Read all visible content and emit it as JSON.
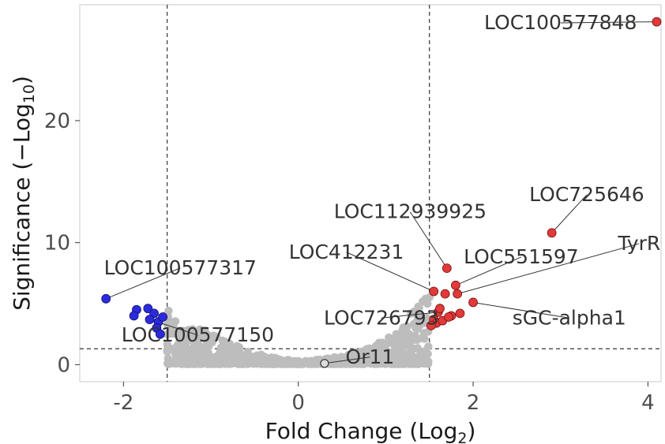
{
  "chart_data": {
    "type": "scatter",
    "title": "",
    "xlabel": {
      "prefix": "Fold Change (Log",
      "sub": "2",
      "suffix": ")"
    },
    "ylabel": {
      "prefix": "Significance (−Log",
      "sub": "10",
      "suffix": ")"
    },
    "xlim": [
      -2.5,
      4.15
    ],
    "ylim": [
      -1.4,
      29.5
    ],
    "x_ticks": [
      -2,
      0,
      2,
      4
    ],
    "y_ticks": [
      0,
      10,
      20
    ],
    "grid": false,
    "thresholds": {
      "fold_change": [
        -1.5,
        1.5
      ],
      "significance": 1.3
    },
    "colors": {
      "down": "#2b2bdd",
      "up": "#e03a3a",
      "ns": "#bdbdbd",
      "highlight_outline": "#333333"
    },
    "points": {
      "up": [
        [
          4.1,
          28.1
        ],
        [
          2.9,
          10.8
        ],
        [
          1.7,
          7.9
        ],
        [
          1.8,
          6.5
        ],
        [
          1.82,
          5.8
        ],
        [
          2.0,
          5.1
        ],
        [
          1.55,
          6.0
        ],
        [
          1.68,
          5.8
        ],
        [
          1.6,
          4.3
        ],
        [
          1.62,
          4.6
        ],
        [
          1.75,
          4.0
        ],
        [
          1.85,
          4.2
        ],
        [
          1.55,
          3.7
        ],
        [
          1.58,
          3.4
        ],
        [
          1.52,
          3.2
        ],
        [
          1.65,
          3.6
        ],
        [
          1.72,
          3.9
        ]
      ],
      "down": [
        [
          -2.2,
          5.4
        ],
        [
          -1.85,
          4.5
        ],
        [
          -1.72,
          4.6
        ],
        [
          -1.88,
          4.0
        ],
        [
          -1.65,
          4.2
        ],
        [
          -1.6,
          3.5
        ],
        [
          -1.7,
          3.7
        ],
        [
          -1.55,
          3.9
        ],
        [
          -1.62,
          3.0
        ],
        [
          -1.58,
          2.5
        ]
      ],
      "ns_envelope": [
        [
          -1.5,
          4.9
        ],
        [
          -1.4,
          4.0
        ],
        [
          -1.3,
          3.4
        ],
        [
          -1.1,
          3.2
        ],
        [
          -1.0,
          2.7
        ],
        [
          -0.8,
          1.9
        ],
        [
          -0.6,
          1.3
        ],
        [
          -0.4,
          0.8
        ],
        [
          -0.2,
          0.45
        ],
        [
          0.0,
          0.3
        ],
        [
          0.2,
          0.4
        ],
        [
          0.4,
          0.6
        ],
        [
          0.6,
          0.9
        ],
        [
          0.8,
          1.4
        ],
        [
          1.0,
          2.1
        ],
        [
          1.1,
          2.6
        ],
        [
          1.2,
          3.3
        ],
        [
          1.3,
          4.3
        ],
        [
          1.4,
          5.3
        ],
        [
          1.5,
          5.6
        ]
      ],
      "highlighted_ns": [
        [
          0.3,
          0.1
        ]
      ]
    },
    "labels": [
      {
        "text": "LOC100577848",
        "point": [
          4.1,
          28.1
        ],
        "pos": [
          3.0,
          27.5
        ],
        "leader": true
      },
      {
        "text": "LOC725646",
        "point": [
          2.9,
          10.8
        ],
        "pos": [
          3.3,
          13.4
        ],
        "leader": true
      },
      {
        "text": "LOC112939925",
        "point": [
          1.7,
          7.9
        ],
        "pos": [
          1.28,
          12.0
        ],
        "leader": true
      },
      {
        "text": "LOC412231",
        "point": [
          1.55,
          6.0
        ],
        "pos": [
          0.55,
          8.7
        ],
        "leader": true
      },
      {
        "text": "LOC551597",
        "point": [
          1.8,
          6.5
        ],
        "pos": [
          2.55,
          8.3
        ],
        "leader": true
      },
      {
        "text": "TyrR",
        "point": [
          1.82,
          5.8
        ],
        "pos": [
          3.9,
          9.4
        ],
        "leader": true
      },
      {
        "text": "sGC-alpha1",
        "point": [
          2.0,
          5.1
        ],
        "pos": [
          3.1,
          3.3
        ],
        "leader": true
      },
      {
        "text": "LOC726793",
        "point": [
          1.6,
          4.3
        ],
        "pos": [
          0.95,
          3.3
        ],
        "leader": true
      },
      {
        "text": "LOC100577317",
        "point": [
          -2.2,
          5.4
        ],
        "pos": [
          -1.35,
          7.4
        ],
        "leader": true
      },
      {
        "text": "LOC100577150",
        "point": [
          -1.7,
          3.7
        ],
        "pos": [
          -1.15,
          1.9
        ],
        "leader": true
      },
      {
        "text": "Or11",
        "point": [
          0.3,
          0.1
        ],
        "pos": [
          0.82,
          0.1
        ],
        "leader": true
      }
    ]
  }
}
